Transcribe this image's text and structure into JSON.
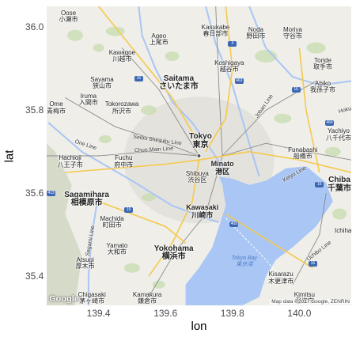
{
  "axes": {
    "xlabel": "lon",
    "ylabel": "lat",
    "xticks": [
      {
        "value": 139.4,
        "label": "139.4"
      },
      {
        "value": 139.6,
        "label": "139.6"
      },
      {
        "value": 139.8,
        "label": "139.8"
      },
      {
        "value": 140.0,
        "label": "140.0"
      }
    ],
    "yticks": [
      {
        "value": 35.4,
        "label": "35.4"
      },
      {
        "value": 35.6,
        "label": "35.6"
      },
      {
        "value": 35.8,
        "label": "35.8"
      },
      {
        "value": 36.0,
        "label": "36.0"
      }
    ],
    "xlim": [
      139.245,
      140.155
    ],
    "ylim": [
      35.33,
      36.05
    ]
  },
  "places": [
    {
      "id": "oose",
      "en": "Oose",
      "jp": "小瀬市",
      "lon": 139.31,
      "lat": 36.025,
      "size": "small"
    },
    {
      "id": "kawagoe",
      "en": "Kawagoe",
      "jp": "川越市",
      "lon": 139.47,
      "lat": 35.93,
      "size": "small"
    },
    {
      "id": "ageo",
      "en": "Ageo",
      "jp": "上尾市",
      "lon": 139.58,
      "lat": 35.97,
      "size": "small"
    },
    {
      "id": "kasukabe",
      "en": "Kasukabe",
      "jp": "春日部市",
      "lon": 139.75,
      "lat": 35.99,
      "size": "small"
    },
    {
      "id": "noda",
      "en": "Noda",
      "jp": "野田市",
      "lon": 139.87,
      "lat": 35.985,
      "size": "small"
    },
    {
      "id": "moriya",
      "en": "Moriya",
      "jp": "守谷市",
      "lon": 139.98,
      "lat": 35.985,
      "size": "small"
    },
    {
      "id": "koshigaya",
      "en": "Koshigaya",
      "jp": "越谷市",
      "lon": 139.79,
      "lat": 35.905,
      "size": "small"
    },
    {
      "id": "toride",
      "en": "Toride",
      "jp": "取手市",
      "lon": 140.07,
      "lat": 35.91,
      "size": "small"
    },
    {
      "id": "sayama",
      "en": "Sayama",
      "jp": "狭山市",
      "lon": 139.41,
      "lat": 35.865,
      "size": "small"
    },
    {
      "id": "saitama",
      "en": "Saitama",
      "jp": "さいたま市",
      "lon": 139.64,
      "lat": 35.865,
      "size": "big"
    },
    {
      "id": "abiko",
      "en": "Abiko",
      "jp": "我孫子市",
      "lon": 140.07,
      "lat": 35.855,
      "size": "small"
    },
    {
      "id": "iruma",
      "en": "Iruma",
      "jp": "入間市",
      "lon": 139.37,
      "lat": 35.825,
      "size": "small"
    },
    {
      "id": "ome",
      "en": "Ome",
      "jp": "青梅市",
      "lon": 139.265,
      "lat": 35.805,
      "size": "small"
    },
    {
      "id": "tokorozawa",
      "en": "Tokorozawa",
      "jp": "所沢市",
      "lon": 139.47,
      "lat": 35.805,
      "size": "small"
    },
    {
      "id": "tokyo",
      "en": "Tokyo",
      "jp": "東京",
      "lon": 139.705,
      "lat": 35.725,
      "size": "big"
    },
    {
      "id": "yachiyo",
      "en": "Yachiyo",
      "jp": "八千代市",
      "lon": 140.125,
      "lat": 35.74,
      "size": "small"
    },
    {
      "id": "funabashi",
      "en": "Funabashi",
      "jp": "船橋市",
      "lon": 140.01,
      "lat": 35.695,
      "size": "small"
    },
    {
      "id": "hachioji",
      "en": "Hachioji",
      "jp": "八王子市",
      "lon": 139.315,
      "lat": 35.675,
      "size": "small"
    },
    {
      "id": "fuchu",
      "en": "Fuchu",
      "jp": "府中市",
      "lon": 139.475,
      "lat": 35.675,
      "size": "small"
    },
    {
      "id": "minato",
      "en": "Minato",
      "jp": "港区",
      "lon": 139.77,
      "lat": 35.66,
      "size": "med"
    },
    {
      "id": "shibuya",
      "en": "Shibuya",
      "jp": "渋谷区",
      "lon": 139.695,
      "lat": 35.638,
      "size": "small"
    },
    {
      "id": "chiba",
      "en": "Chiba",
      "jp": "千葉市",
      "lon": 140.135,
      "lat": 35.62,
      "size": "big"
    },
    {
      "id": "sagamihara",
      "en": "Sagamihara",
      "jp": "相模原市",
      "lon": 139.365,
      "lat": 35.585,
      "size": "big"
    },
    {
      "id": "kawasaki",
      "en": "Kawasaki",
      "jp": "川崎市",
      "lon": 139.71,
      "lat": 35.555,
      "size": "med"
    },
    {
      "id": "machida",
      "en": "Machida",
      "jp": "町田市",
      "lon": 139.44,
      "lat": 35.53,
      "size": "small"
    },
    {
      "id": "ichihara",
      "en": "Ichiha",
      "jp": "",
      "lon": 140.14,
      "lat": 35.51,
      "size": "small"
    },
    {
      "id": "yamato",
      "en": "Yamato",
      "jp": "大和市",
      "lon": 139.455,
      "lat": 35.465,
      "size": "small"
    },
    {
      "id": "yokohama",
      "en": "Yokohama",
      "jp": "横浜市",
      "lon": 139.625,
      "lat": 35.455,
      "size": "big"
    },
    {
      "id": "atsugi",
      "en": "Atsugi",
      "jp": "厚木市",
      "lon": 139.36,
      "lat": 35.43,
      "size": "small"
    },
    {
      "id": "kisarazu",
      "en": "Kisarazu",
      "jp": "木更津市",
      "lon": 139.945,
      "lat": 35.395,
      "size": "small"
    },
    {
      "id": "chigasaki",
      "en": "Chigasaki",
      "jp": "茅ヶ崎市",
      "lon": 139.38,
      "lat": 35.34,
      "size": "small"
    },
    {
      "id": "kamakura",
      "en": "Kamakura",
      "jp": "鎌倉市",
      "lon": 139.545,
      "lat": 35.33,
      "size": "small"
    },
    {
      "id": "kimitsu",
      "en": "Kimitsu",
      "jp": "君津市",
      "lon": 140.015,
      "lat": 35.335,
      "size": "small"
    }
  ],
  "road_labels": [
    {
      "id": "one-line",
      "text": "One Line",
      "lon": 139.36,
      "lat": 35.715,
      "rotate": 18
    },
    {
      "id": "seibu-shinjuku",
      "text": "Seibu Shinjuku Line",
      "lon": 139.575,
      "lat": 35.727,
      "rotate": 8
    },
    {
      "id": "chuo-main",
      "text": "Chuo Main Line",
      "lon": 139.565,
      "lat": 35.705,
      "rotate": -3
    },
    {
      "id": "joban",
      "text": "Joban Line",
      "lon": 139.895,
      "lat": 35.81,
      "rotate": -55
    },
    {
      "id": "keiyo",
      "text": "Keiyo Line",
      "lon": 139.985,
      "lat": 35.645,
      "rotate": -30
    },
    {
      "id": "uchibo",
      "text": "Uchibo Line",
      "lon": 140.06,
      "lat": 35.46,
      "rotate": -38
    },
    {
      "id": "sagami",
      "text": "Sagami Line",
      "lon": 139.375,
      "lat": 35.485,
      "rotate": -80
    },
    {
      "id": "hoku",
      "text": "Hoku",
      "lon": 140.14,
      "lat": 35.8,
      "rotate": -15
    }
  ],
  "water_labels": [
    {
      "id": "tokyo-bay",
      "en": "Tokyo Bay",
      "jp": "東京湾",
      "lon": 139.835,
      "lat": 35.435
    }
  ],
  "shields": [
    {
      "id": "s1",
      "text": "16",
      "lon": 139.52,
      "lat": 35.875,
      "color": "#3d67b5"
    },
    {
      "id": "s2",
      "text": "16",
      "lon": 139.99,
      "lat": 35.85,
      "color": "#3d67b5"
    },
    {
      "id": "s3",
      "text": "16",
      "lon": 140.06,
      "lat": 35.62,
      "color": "#3d67b5"
    },
    {
      "id": "s4",
      "text": "413",
      "lon": 139.255,
      "lat": 35.6,
      "color": "#3d67b5"
    },
    {
      "id": "s5",
      "text": "16",
      "lon": 139.49,
      "lat": 35.56,
      "color": "#3d67b5"
    },
    {
      "id": "s6",
      "text": "409",
      "lon": 139.805,
      "lat": 35.525,
      "color": "#3d67b5"
    },
    {
      "id": "s7",
      "text": "16",
      "lon": 140.04,
      "lat": 35.43,
      "color": "#3d67b5"
    },
    {
      "id": "s8",
      "text": "4",
      "lon": 139.8,
      "lat": 35.96,
      "color": "#3d67b5"
    },
    {
      "id": "s9",
      "text": "463",
      "lon": 139.82,
      "lat": 35.87,
      "color": "#3d67b5"
    },
    {
      "id": "s10",
      "text": "464",
      "lon": 140.09,
      "lat": 35.77,
      "color": "#3d67b5"
    }
  ],
  "colors": {
    "land": "#efeee9",
    "urban": "#e2e0da",
    "park": "#c9ddb2",
    "water": "#a9c6f5",
    "river": "#a9c6f5",
    "highway": "#f5c94b",
    "rail": "#8a8a8a",
    "mountain": "#cfd6c1"
  },
  "google_logo": "Google",
  "attribution": "Map data ©2017 Google, ZENRIN"
}
